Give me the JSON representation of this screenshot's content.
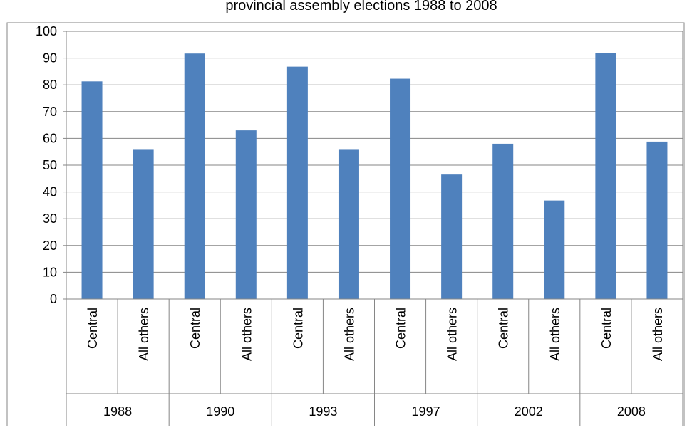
{
  "chart_data": {
    "type": "bar",
    "title": "provincial assembly elections 1988 to 2008",
    "xlabel": "",
    "ylabel": "",
    "ylim": [
      0,
      100
    ],
    "yticks": [
      0,
      10,
      20,
      30,
      40,
      50,
      60,
      70,
      80,
      90,
      100
    ],
    "grid": true,
    "legend": "none",
    "bar_color": "#4f81bd",
    "groups": [
      "1988",
      "1990",
      "1993",
      "1997",
      "2002",
      "2008"
    ],
    "subcategories": [
      "Central",
      "All others"
    ],
    "values": [
      81.3,
      56.0,
      91.7,
      63.0,
      86.8,
      56.0,
      82.3,
      46.5,
      58.0,
      36.8,
      92.0,
      58.8
    ]
  }
}
